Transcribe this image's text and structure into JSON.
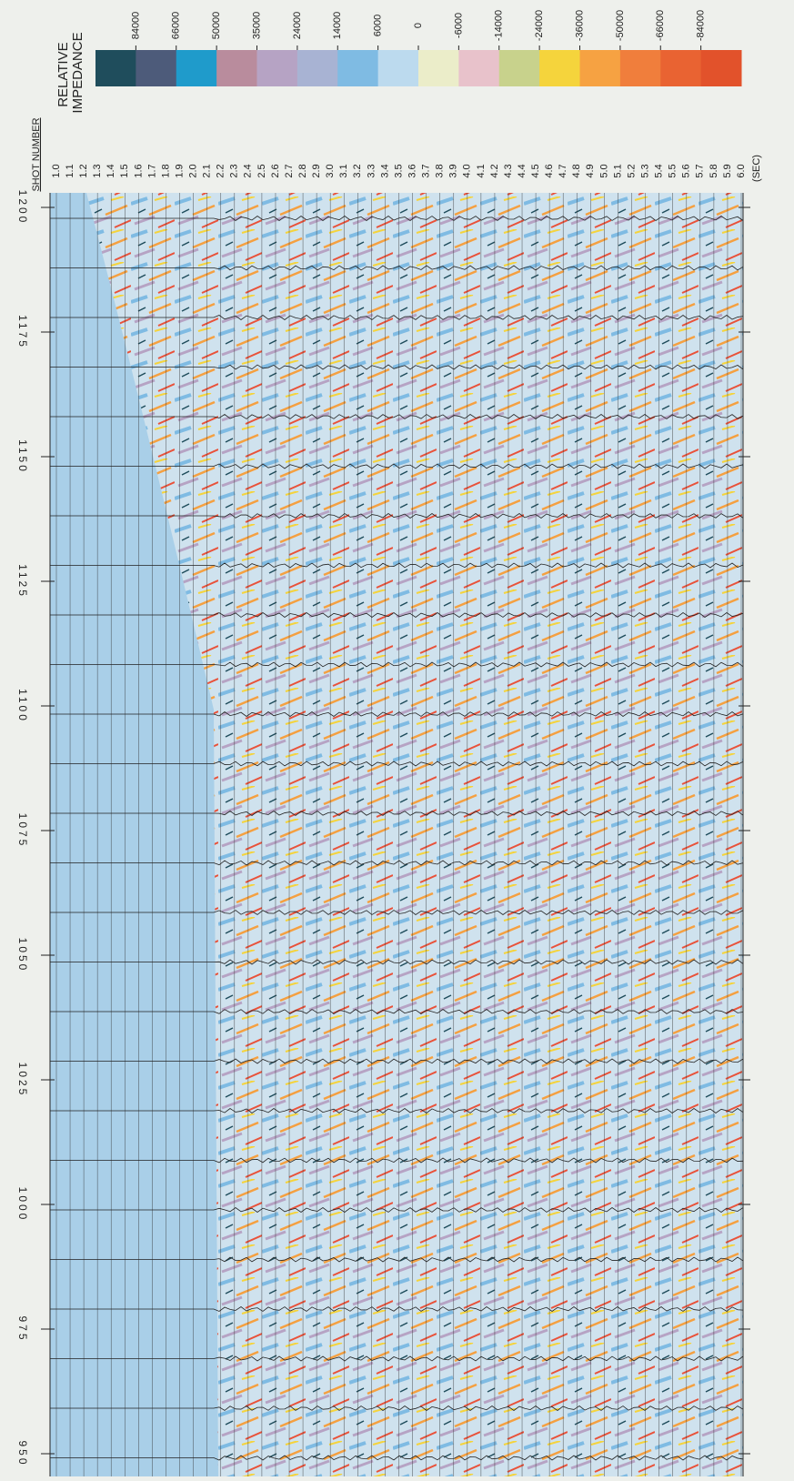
{
  "legend": {
    "title_lines": [
      "RELATIVE",
      "IMPEDANCE"
    ],
    "labels": [
      "84000",
      "66000",
      "50000",
      "35000",
      "24000",
      "14000",
      "6000",
      "0",
      "-6000",
      "-14000",
      "-24000",
      "-36000",
      "-50000",
      "-66000",
      "-84000"
    ],
    "colors": [
      "#1f4d5c",
      "#4d5b7a",
      "#1f9bcb",
      "#b98c9d",
      "#b6a3c4",
      "#a8b3d3",
      "#7fbbe3",
      "#bcdaee",
      "#ebedc9",
      "#e8c2cb",
      "#c8d28c",
      "#f5d43c",
      "#f6a242",
      "#f07e3c",
      "#e96332",
      "#e2522b"
    ]
  },
  "axis_title": "SHOT NUMBER",
  "time_unit": "(SEC)",
  "time_labels": [
    "1.0",
    "1.1",
    "1.2",
    "1.3",
    "1.4",
    "1.5",
    "1.6",
    "1.7",
    "1.8",
    "1.9",
    "2.0",
    "2.1",
    "2.2",
    "2.3",
    "2.4",
    "2.5",
    "2.6",
    "2.7",
    "2.8",
    "2.9",
    "3.0",
    "3.1",
    "3.2",
    "3.3",
    "3.4",
    "3.5",
    "3.6",
    "3.7",
    "3.8",
    "3.9",
    "4.0",
    "4.1",
    "4.2",
    "4.3",
    "4.4",
    "4.5",
    "4.6",
    "4.7",
    "4.8",
    "4.9",
    "5.0",
    "5.1",
    "5.2",
    "5.3",
    "5.4",
    "5.5",
    "5.6",
    "5.7",
    "5.8",
    "5.9",
    "6.0"
  ],
  "shot_numbers": [
    "1200",
    "1175",
    "1150",
    "1125",
    "1100",
    "1075",
    "1050",
    "1025",
    "1000",
    "975",
    "950"
  ]
}
